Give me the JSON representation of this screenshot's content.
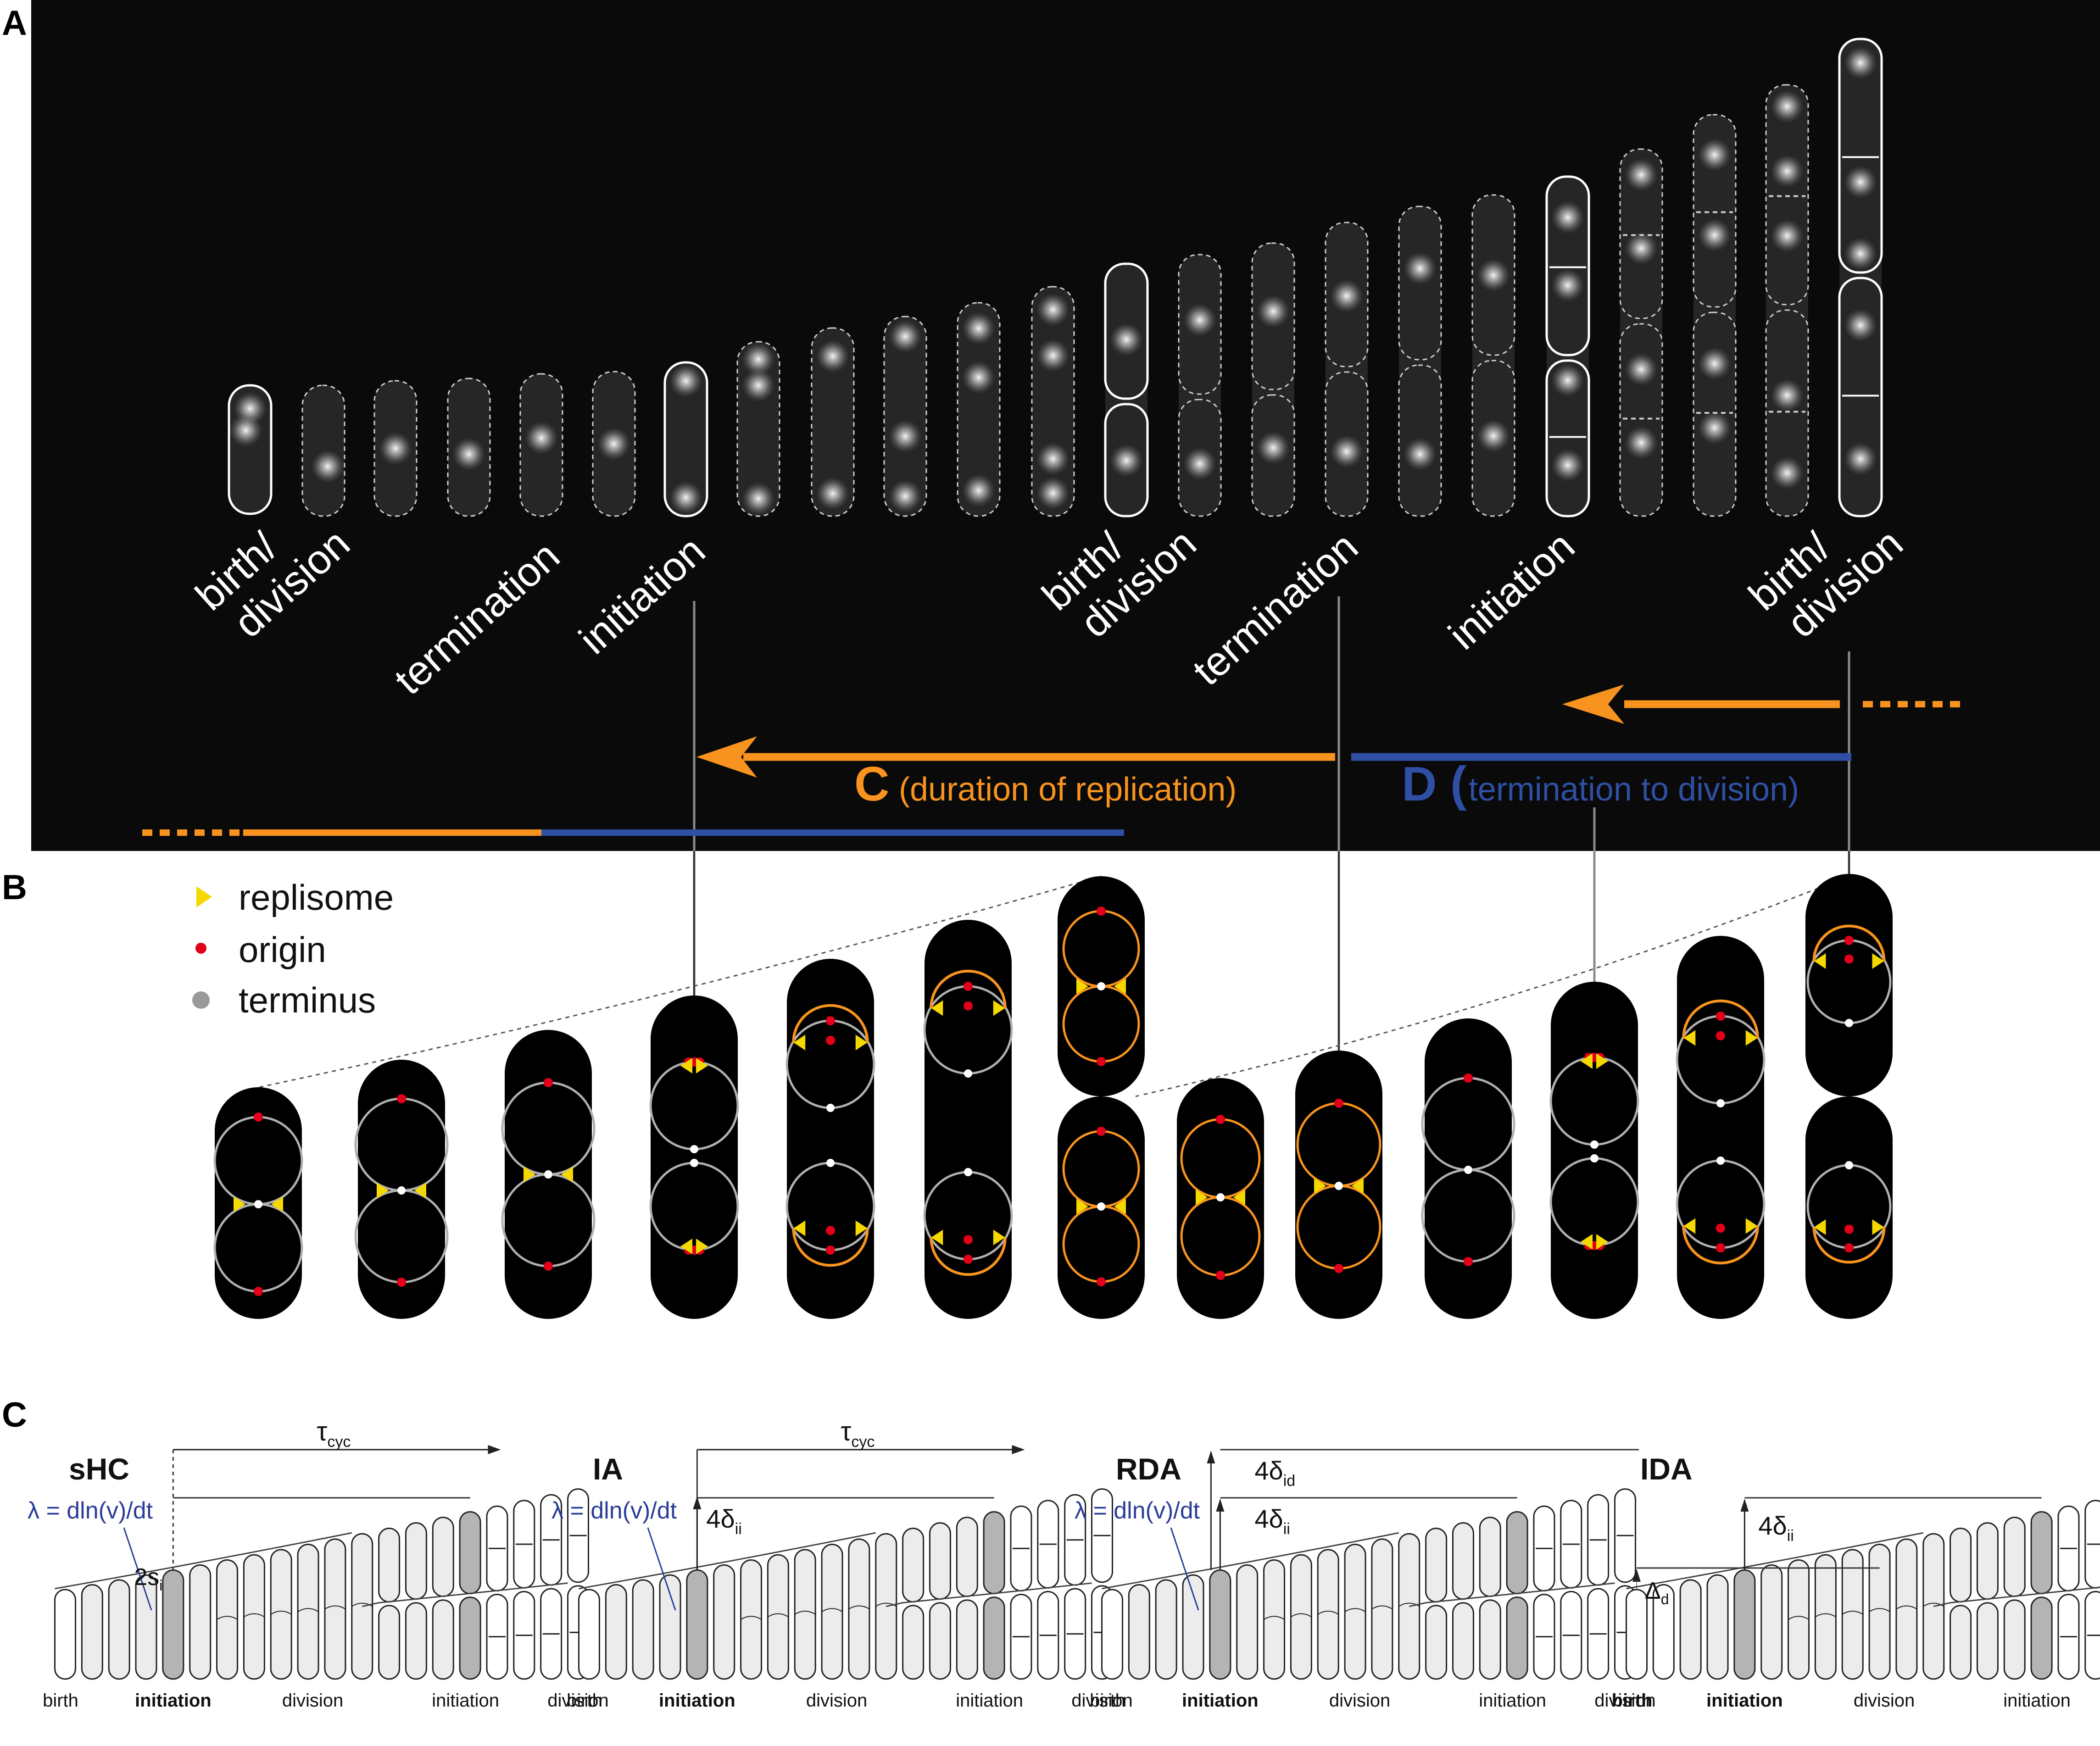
{
  "panels": {
    "a": {
      "letter": "A",
      "stage_labels": [
        {
          "line1": "birth/",
          "line2": "division"
        },
        {
          "line1": "termination",
          "line2": ""
        },
        {
          "line1": "initiation",
          "line2": ""
        },
        {
          "line1": "birth/",
          "line2": "division"
        },
        {
          "line1": "termination",
          "line2": ""
        },
        {
          "line1": "initiation",
          "line2": ""
        },
        {
          "line1": "birth/",
          "line2": "division"
        }
      ],
      "c_letter": "C",
      "c_text": "(duration of replication)",
      "d_letter": "D (",
      "d_text": "termination to division)"
    },
    "b": {
      "letter": "B",
      "legend": [
        {
          "label": "replisome",
          "color": "#f5d800"
        },
        {
          "label": "origin",
          "color": "#e2001a"
        },
        {
          "label": "terminus",
          "color": "#9a9a9a"
        }
      ]
    },
    "c": {
      "letter": "C",
      "models": [
        {
          "name": "sHC",
          "lambda": "λ = dln(v)/dt",
          "top": "τ",
          "top_sub": "cyc",
          "mid": "",
          "mid_sub": "",
          "side": "2s",
          "side_sub": "i",
          "axis": [
            {
              "t": "birth",
              "bold": false
            },
            {
              "t": "initiation",
              "bold": true
            },
            {
              "t": "division",
              "bold": false
            },
            {
              "t": "initiation",
              "bold": false
            },
            {
              "t": "division",
              "bold": false
            }
          ]
        },
        {
          "name": "IA",
          "lambda": "λ = dln(v)/dt",
          "top": "τ",
          "top_sub": "cyc",
          "mid": "",
          "mid_sub": "",
          "side": "4δ",
          "side_sub": "ii",
          "axis": [
            {
              "t": "birth",
              "bold": false
            },
            {
              "t": "initiation",
              "bold": true
            },
            {
              "t": "division",
              "bold": false
            },
            {
              "t": "initiation",
              "bold": false
            },
            {
              "t": "division",
              "bold": false
            }
          ]
        },
        {
          "name": "RDA",
          "lambda": "λ = dln(v)/dt",
          "top": "4δ",
          "top_sub": "id",
          "mid": "4δ",
          "mid_sub": "ii",
          "side": "",
          "side_sub": "",
          "axis": [
            {
              "t": "birth",
              "bold": false
            },
            {
              "t": "initiation",
              "bold": true
            },
            {
              "t": "division",
              "bold": false
            },
            {
              "t": "initiation",
              "bold": false
            },
            {
              "t": "division",
              "bold": false
            }
          ]
        },
        {
          "name": "IDA",
          "lambda": "",
          "top": "4δ",
          "top_sub": "ii",
          "mid": "",
          "mid_sub": "",
          "side": "Δ",
          "side_sub": "d",
          "axis": [
            {
              "t": "birth",
              "bold": true
            },
            {
              "t": "initiation",
              "bold": true
            },
            {
              "t": "division",
              "bold": false
            },
            {
              "t": "initiation",
              "bold": false
            },
            {
              "t": "division",
              "bold": false
            }
          ]
        }
      ]
    }
  },
  "colors": {
    "orange": "#f7931e",
    "blue": "#2e4fa3",
    "lambda_blue": "#2a3d97",
    "replisome": "#f5d800",
    "origin": "#e2001a",
    "terminus": "#ffffff",
    "chromosome": "#b0b0b0",
    "cell_light": "#ececec",
    "cell_dark": "#b4b4b4"
  }
}
